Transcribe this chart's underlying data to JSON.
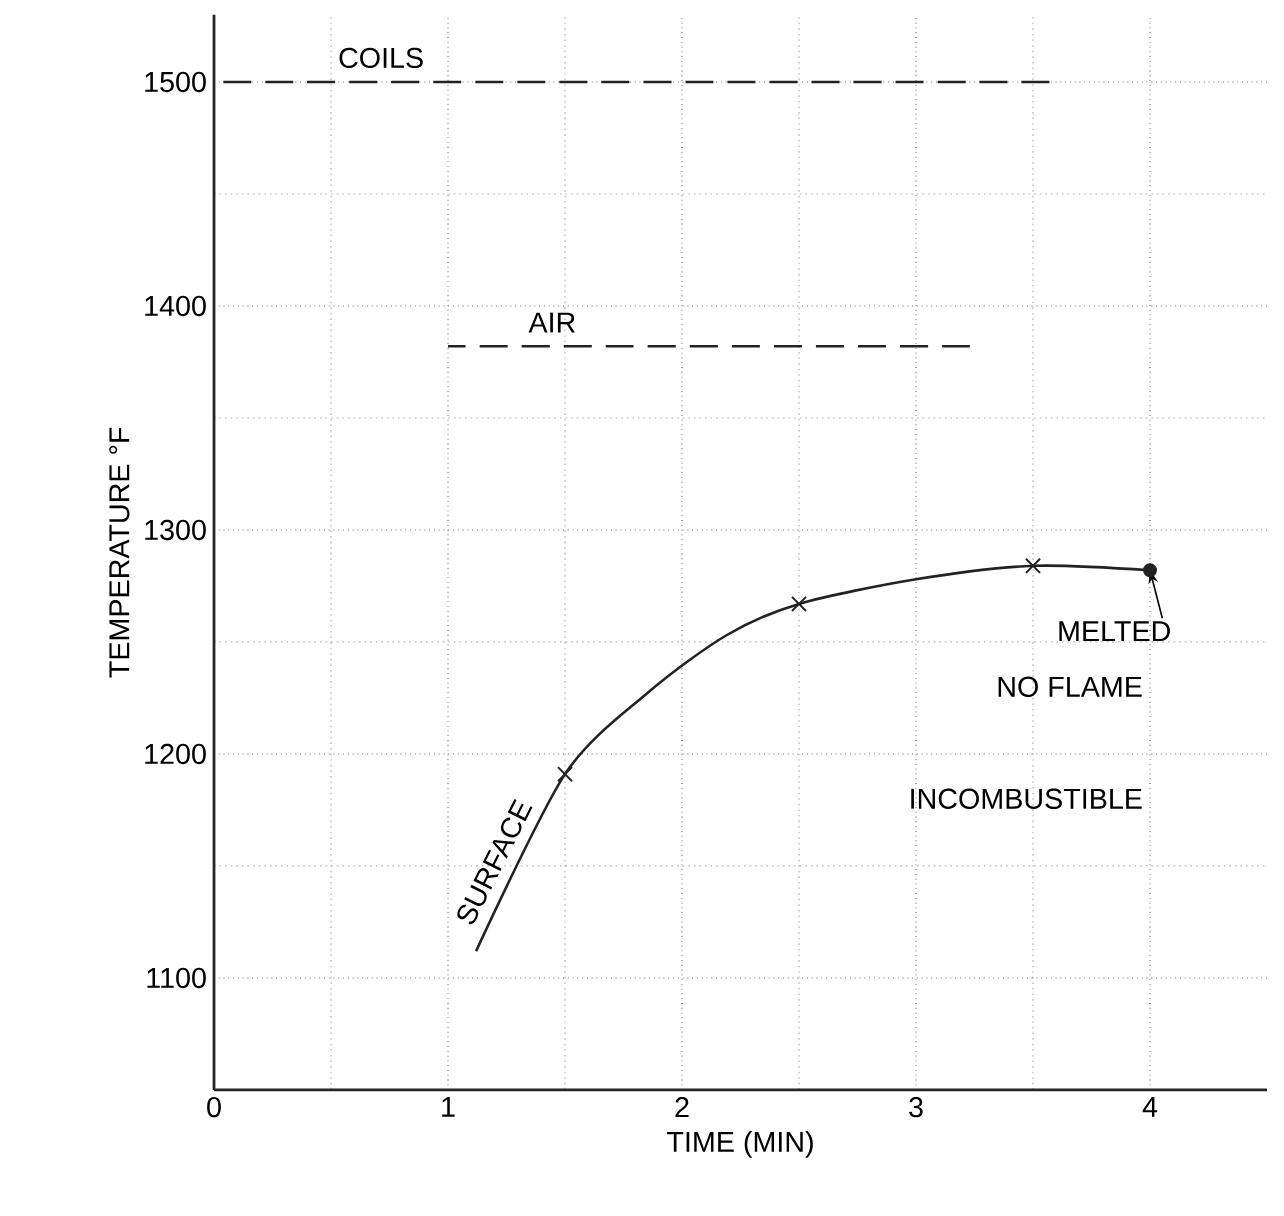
{
  "chart_data": {
    "type": "line",
    "xlabel": "TIME (MIN)",
    "ylabel": "TEMPERATURE °F",
    "xlim": [
      0,
      4.5
    ],
    "ylim": [
      1050,
      1530
    ],
    "xticks": [
      0,
      1,
      2,
      3,
      4
    ],
    "yticks": [
      1100,
      1200,
      1300,
      1400,
      1500
    ],
    "grid": true,
    "series": [
      {
        "name": "COILS",
        "line_style": "dashed",
        "marker": "none",
        "color": "#222222",
        "x": [
          0,
          3.57
        ],
        "values": [
          1500,
          1500
        ]
      },
      {
        "name": "AIR",
        "line_style": "dashed",
        "marker": "none",
        "color": "#222222",
        "x": [
          1.0,
          3.23
        ],
        "values": [
          1382,
          1382
        ]
      },
      {
        "name": "SURFACE",
        "line_style": "solid",
        "marker": "none",
        "color": "#222222",
        "x": [
          1.12,
          1.5,
          1.85,
          2.19,
          2.5,
          3.0,
          3.5,
          4.0
        ],
        "values": [
          1112,
          1191,
          1227,
          1253,
          1267,
          1278,
          1284,
          1282
        ]
      },
      {
        "type": "scatter",
        "marker": "cross",
        "color": "#222222",
        "x": [
          1.5,
          2.5,
          3.5
        ],
        "values": [
          1191,
          1267,
          1284
        ]
      },
      {
        "type": "scatter",
        "marker": "circle",
        "color": "#222222",
        "x": [
          4.0
        ],
        "values": [
          1282
        ]
      }
    ],
    "annotations": [
      {
        "text": "MELTED",
        "x": 4.0,
        "y": 1282
      },
      "NO FLAME",
      "INCOMBUSTIBLE"
    ]
  }
}
